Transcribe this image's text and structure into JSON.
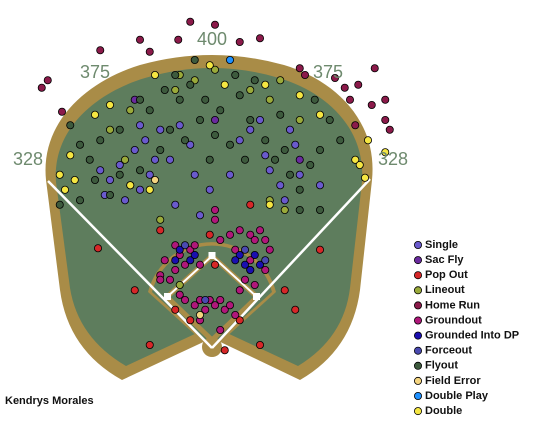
{
  "chart_data": {
    "type": "scatter",
    "title": "Kendrys Morales",
    "fence_labels": [
      328,
      375,
      400,
      375,
      328
    ],
    "series": [
      {
        "name": "Single",
        "color": "#6a5acd",
        "x": [
          -149,
          -136,
          -123,
          -109,
          -103,
          -96,
          -83,
          -76,
          -69,
          -56,
          -43,
          -29,
          -23,
          -3,
          37,
          51,
          71,
          77,
          91,
          104,
          111,
          117,
          -96,
          -89,
          -116,
          24,
          144,
          -143,
          -49,
          -16,
          97,
          64
        ],
        "y": [
          237,
          224,
          244,
          217,
          264,
          211,
          231,
          251,
          291,
          251,
          297,
          271,
          231,
          211,
          277,
          291,
          257,
          237,
          217,
          291,
          271,
          231,
          297,
          277,
          197,
          231,
          217,
          204,
          191,
          177,
          197,
          304
        ]
      },
      {
        "name": "Sac Fly",
        "color": "#6a2a9e",
        "x": [
          -103,
          4,
          117
        ],
        "y": [
          331,
          304,
          251
        ]
      },
      {
        "name": "Pop Out",
        "color": "#d62728",
        "x": [
          -152,
          -103,
          -83,
          -69,
          -3,
          17,
          64,
          97,
          111,
          37,
          -49,
          -29,
          51,
          144,
          4
        ],
        "y": [
          133,
          77,
          4,
          157,
          151,
          -3,
          4,
          77,
          51,
          37,
          51,
          37,
          191,
          131,
          111
        ]
      },
      {
        "name": "Lineout",
        "color": "#9aaa3a",
        "x": [
          -49,
          -23,
          4,
          -43,
          51,
          77,
          91,
          -136,
          -109,
          77,
          97,
          -69,
          -43,
          51,
          117,
          -116
        ],
        "y": [
          344,
          357,
          371,
          364,
          344,
          331,
          357,
          291,
          317,
          197,
          184,
          171,
          84,
          104,
          304,
          251
        ]
      },
      {
        "name": "Home Run",
        "color": "#8b1a4a",
        "x": [
          -227,
          -219,
          -200,
          -149,
          -96,
          -83,
          -45,
          -29,
          4,
          37,
          64,
          117,
          124,
          164,
          177,
          184,
          195,
          217,
          213,
          231,
          237,
          231,
          191
        ],
        "y": [
          347,
          357,
          315,
          397,
          411,
          395,
          411,
          435,
          431,
          408,
          413,
          373,
          364,
          360,
          347,
          331,
          351,
          373,
          324,
          304,
          291,
          331,
          297
        ]
      },
      {
        "name": "Groundout",
        "color": "#b0177a",
        "x": [
          -49,
          -43,
          -36,
          -49,
          -63,
          -56,
          -69,
          -29,
          -23,
          -16,
          4,
          4,
          11,
          24,
          31,
          37,
          51,
          57,
          64,
          71,
          51,
          44,
          57,
          71,
          -16,
          -9,
          -3,
          4,
          11,
          17,
          24,
          31,
          -16,
          -23,
          -36,
          -43,
          -69,
          77,
          37,
          11
        ],
        "y": [
          137,
          124,
          111,
          104,
          117,
          91,
          97,
          131,
          137,
          111,
          184,
          171,
          144,
          151,
          131,
          157,
          151,
          144,
          157,
          144,
          117,
          91,
          84,
          104,
          64,
          51,
          64,
          57,
          64,
          51,
          57,
          44,
          37,
          57,
          64,
          71,
          91,
          131,
          77,
          24
        ]
      },
      {
        "name": "Grounded Into DP",
        "color": "#1a0fb0",
        "x": [
          -43,
          -29,
          37,
          44,
          51,
          57,
          64,
          31,
          -49,
          -23
        ],
        "y": [
          131,
          117,
          124,
          111,
          104,
          124,
          111,
          117,
          117,
          124
        ]
      },
      {
        "name": "Forceout",
        "color": "#4a4ab0",
        "x": [
          -36,
          44,
          71,
          -9
        ],
        "y": [
          137,
          131,
          117,
          64
        ]
      },
      {
        "name": "Flyout",
        "color": "#3d5a3d",
        "x": [
          -189,
          -176,
          -163,
          -149,
          -123,
          -96,
          -83,
          -63,
          -49,
          -43,
          -29,
          -23,
          -16,
          -9,
          4,
          11,
          37,
          51,
          57,
          71,
          84,
          97,
          104,
          117,
          131,
          144,
          157,
          171,
          137,
          91,
          24,
          -36,
          -69,
          -96,
          -123,
          -136,
          -3,
          44,
          117,
          144,
          -156,
          -203,
          -176,
          31,
          -56
        ],
        "y": [
          297,
          271,
          251,
          277,
          291,
          331,
          317,
          344,
          364,
          331,
          351,
          384,
          304,
          331,
          284,
          317,
          337,
          304,
          357,
          277,
          251,
          264,
          231,
          211,
          244,
          264,
          304,
          277,
          331,
          311,
          271,
          277,
          264,
          237,
          231,
          204,
          251,
          251,
          184,
          184,
          224,
          191,
          197,
          364,
          291
        ]
      },
      {
        "name": "Field Error",
        "color": "#f5d580",
        "x": [
          -16,
          -76
        ],
        "y": [
          44,
          224
        ]
      },
      {
        "name": "Double Play",
        "color": "#1e90ff",
        "x": [
          24
        ],
        "y": [
          384
        ]
      },
      {
        "name": "Double",
        "color": "#f5e642",
        "x": [
          -76,
          -3,
          71,
          -136,
          -156,
          -189,
          -203,
          -196,
          -183,
          191,
          197,
          204,
          231,
          208,
          144,
          117,
          -109,
          -83,
          77,
          17
        ],
        "y": [
          364,
          377,
          351,
          324,
          311,
          257,
          231,
          211,
          224,
          251,
          244,
          227,
          261,
          277,
          311,
          337,
          217,
          211,
          191,
          351
        ]
      }
    ]
  }
}
